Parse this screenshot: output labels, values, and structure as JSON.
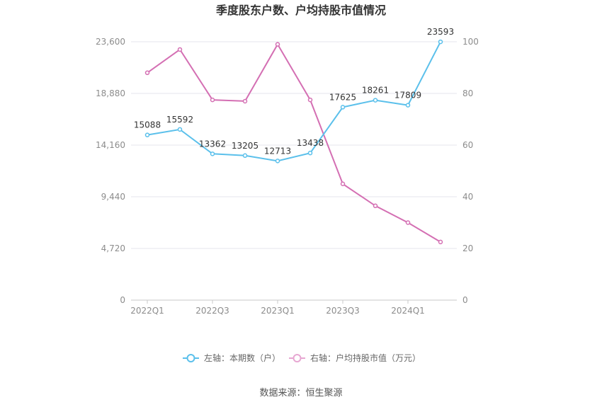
{
  "chart_data": {
    "type": "line",
    "title": "季度股东户数、户均持股市值情况",
    "categories": [
      "2022Q1",
      "2022Q2",
      "2022Q3",
      "2022Q4",
      "2023Q1",
      "2023Q2",
      "2023Q3",
      "2023Q4",
      "2024Q1",
      "2024Q2"
    ],
    "x_tick_labels": [
      "2022Q1",
      "2022Q3",
      "2023Q1",
      "2023Q3",
      "2024Q1"
    ],
    "left_axis": {
      "ticks": [
        "0",
        "4,720",
        "9,440",
        "14,160",
        "18,880",
        "23,600"
      ],
      "ylim": [
        0,
        23600
      ]
    },
    "right_axis": {
      "ticks": [
        "0",
        "20",
        "40",
        "60",
        "80",
        "100"
      ],
      "ylim": [
        0,
        100
      ]
    },
    "series": [
      {
        "name": "左轴：本期数（户）",
        "axis": "left",
        "color": "#5bc0eb",
        "values": [
          15088,
          15592,
          13362,
          13205,
          12713,
          13438,
          17625,
          18261,
          17809,
          23593
        ],
        "labels": [
          "15088",
          "15592",
          "13362",
          "13205",
          "12713",
          "13438",
          "17625",
          "18261",
          "17809",
          "23593"
        ]
      },
      {
        "name": "右轴：户均持股市值（万元）",
        "axis": "right",
        "color": "#d46fb3",
        "values": [
          88,
          97,
          77.5,
          77,
          99,
          77.5,
          45,
          36.5,
          30,
          22.5
        ]
      }
    ],
    "legend_position": "bottom",
    "grid": true
  },
  "source_text": "数据来源：恒生聚源"
}
